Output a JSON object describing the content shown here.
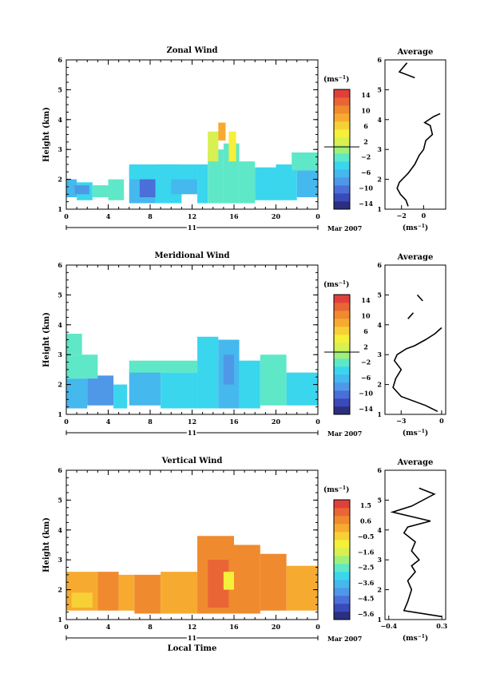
{
  "chart_data": [
    {
      "type": "heatmap",
      "title": "Zonal Wind",
      "ylabel": "Height (km)",
      "xlabel": "",
      "xlim": [
        0,
        24
      ],
      "ylim": [
        1,
        6
      ],
      "x_ticks": [
        "0",
        "4",
        "8",
        "12",
        "16",
        "20",
        "0"
      ],
      "y_ticks": [
        "1",
        "2",
        "3",
        "4",
        "5",
        "6"
      ],
      "date_label": "11",
      "month_label": "Mar 2007",
      "colorbar_unit": "(ms",
      "colorbar_unit_exp": "−1",
      "colorbar_unit_close": ")",
      "colorbar_range": [
        -16,
        16
      ],
      "colorbar_labels": [
        "14",
        "10",
        "6",
        "2",
        "−2",
        "−6",
        "−10",
        "−14"
      ],
      "cells": [
        {
          "x0": 0.0,
          "x1": 1.0,
          "y0": 1.4,
          "y1": 2.0,
          "v": -6
        },
        {
          "x0": 1.0,
          "x1": 2.5,
          "y0": 1.3,
          "y1": 1.9,
          "v": -4
        },
        {
          "x0": 2.5,
          "x1": 4.0,
          "y0": 1.4,
          "y1": 1.8,
          "v": -3
        },
        {
          "x0": 4.0,
          "x1": 5.5,
          "y0": 1.3,
          "y1": 2.0,
          "v": -3
        },
        {
          "x0": 0.8,
          "x1": 2.2,
          "y0": 1.5,
          "y1": 1.8,
          "v": -8
        },
        {
          "x0": 6.0,
          "x1": 8.5,
          "y0": 1.2,
          "y1": 2.4,
          "v": -7
        },
        {
          "x0": 7.0,
          "x1": 9.5,
          "y0": 1.4,
          "y1": 2.1,
          "v": -10
        },
        {
          "x0": 8.5,
          "x1": 11.0,
          "y0": 1.2,
          "y1": 2.5,
          "v": -5
        },
        {
          "x0": 10.0,
          "x1": 12.5,
          "y0": 1.5,
          "y1": 2.2,
          "v": -7
        },
        {
          "x0": 12.5,
          "x1": 13.5,
          "y0": 1.2,
          "y1": 2.5,
          "v": -4
        },
        {
          "x0": 13.5,
          "x1": 15.0,
          "y0": 1.2,
          "y1": 3.0,
          "v": -2
        },
        {
          "x0": 13.5,
          "x1": 14.5,
          "y0": 2.6,
          "y1": 3.6,
          "v": 2
        },
        {
          "x0": 15.0,
          "x1": 16.5,
          "y0": 1.2,
          "y1": 3.2,
          "v": -3
        },
        {
          "x0": 15.5,
          "x1": 16.2,
          "y0": 2.6,
          "y1": 3.6,
          "v": 4
        },
        {
          "x0": 16.5,
          "x1": 18.0,
          "y0": 1.2,
          "y1": 2.6,
          "v": -3
        },
        {
          "x0": 18.0,
          "x1": 20.0,
          "y0": 1.3,
          "y1": 2.4,
          "v": -5
        },
        {
          "x0": 20.0,
          "x1": 22.0,
          "y0": 1.3,
          "y1": 2.5,
          "v": -4
        },
        {
          "x0": 22.0,
          "x1": 24.0,
          "y0": 1.4,
          "y1": 2.3,
          "v": -6
        },
        {
          "x0": 21.5,
          "x1": 24.0,
          "y0": 2.3,
          "y1": 2.9,
          "v": -2
        },
        {
          "x0": 6.0,
          "x1": 12.5,
          "y0": 2.0,
          "y1": 2.5,
          "v": -4
        },
        {
          "x0": 14.5,
          "x1": 15.2,
          "y0": 3.3,
          "y1": 3.9,
          "v": 8
        }
      ],
      "profile": {
        "title": "Average",
        "xlim": [
          -3.5,
          2
        ],
        "x_ticks": [
          -2,
          0
        ],
        "x_tick_labels": [
          "−2",
          "0"
        ],
        "ylim": [
          1,
          6
        ],
        "y_ticks": [
          "1",
          "2",
          "3",
          "4",
          "5",
          "6"
        ],
        "xunit": "(ms",
        "xunit_exp": "−1",
        "xunit_close": ")",
        "segments": [
          [
            [
              -1.4,
              1.1
            ],
            [
              -1.6,
              1.3
            ],
            [
              -2.1,
              1.5
            ],
            [
              -2.4,
              1.7
            ],
            [
              -2.2,
              1.9
            ],
            [
              -1.4,
              2.2
            ],
            [
              -0.8,
              2.5
            ],
            [
              -0.4,
              2.8
            ],
            [
              0.0,
              3.0
            ],
            [
              0.2,
              3.3
            ],
            [
              0.8,
              3.5
            ],
            [
              0.6,
              3.8
            ],
            [
              0.1,
              3.9
            ],
            [
              0.9,
              4.1
            ],
            [
              1.5,
              4.2
            ]
          ],
          [
            [
              -1.5,
              5.9
            ],
            [
              -2.2,
              5.6
            ],
            [
              -0.8,
              5.4
            ]
          ]
        ]
      }
    },
    {
      "type": "heatmap",
      "title": "Meridional Wind",
      "ylabel": "Height (km)",
      "xlabel": "",
      "xlim": [
        0,
        24
      ],
      "ylim": [
        1,
        6
      ],
      "x_ticks": [
        "0",
        "4",
        "8",
        "12",
        "16",
        "20",
        "0"
      ],
      "y_ticks": [
        "1",
        "2",
        "3",
        "4",
        "5",
        "6"
      ],
      "date_label": "11",
      "month_label": "Mar 2007",
      "colorbar_unit": "(ms",
      "colorbar_unit_exp": "−1",
      "colorbar_unit_close": ")",
      "colorbar_range": [
        -16,
        16
      ],
      "colorbar_labels": [
        "14",
        "10",
        "6",
        "2",
        "−2",
        "−6",
        "−10",
        "−14"
      ],
      "cells": [
        {
          "x0": 0.0,
          "x1": 2.0,
          "y0": 1.2,
          "y1": 2.2,
          "v": -7
        },
        {
          "x0": 2.0,
          "x1": 4.5,
          "y0": 1.3,
          "y1": 2.3,
          "v": -8
        },
        {
          "x0": 0.0,
          "x1": 3.0,
          "y0": 2.2,
          "y1": 3.0,
          "v": -3
        },
        {
          "x0": 4.5,
          "x1": 5.8,
          "y0": 1.2,
          "y1": 2.0,
          "v": -5
        },
        {
          "x0": 6.0,
          "x1": 9.0,
          "y0": 1.3,
          "y1": 2.5,
          "v": -7
        },
        {
          "x0": 9.0,
          "x1": 12.5,
          "y0": 1.2,
          "y1": 2.4,
          "v": -5
        },
        {
          "x0": 6.0,
          "x1": 12.5,
          "y0": 2.4,
          "y1": 2.8,
          "v": -3
        },
        {
          "x0": 12.5,
          "x1": 14.5,
          "y0": 1.2,
          "y1": 3.6,
          "v": -5
        },
        {
          "x0": 14.5,
          "x1": 16.5,
          "y0": 1.2,
          "y1": 3.5,
          "v": -6
        },
        {
          "x0": 16.5,
          "x1": 18.5,
          "y0": 1.2,
          "y1": 2.8,
          "v": -4
        },
        {
          "x0": 18.5,
          "x1": 21.0,
          "y0": 1.3,
          "y1": 3.0,
          "v": -3
        },
        {
          "x0": 21.0,
          "x1": 24.0,
          "y0": 1.3,
          "y1": 2.4,
          "v": -5
        },
        {
          "x0": 15.0,
          "x1": 16.0,
          "y0": 2.0,
          "y1": 3.0,
          "v": -9
        },
        {
          "x0": 0.0,
          "x1": 1.5,
          "y0": 3.0,
          "y1": 3.7,
          "v": -3
        }
      ],
      "profile": {
        "title": "Average",
        "xlim": [
          -4.2,
          0.3
        ],
        "x_ticks": [
          -3,
          0
        ],
        "x_tick_labels": [
          "−3",
          "0"
        ],
        "ylim": [
          1,
          6
        ],
        "y_ticks": [
          "1",
          "2",
          "3",
          "4",
          "5",
          "6"
        ],
        "xunit": "(ms",
        "xunit_exp": "−1",
        "xunit_close": ")",
        "segments": [
          [
            [
              -0.3,
              1.1
            ],
            [
              -1.2,
              1.3
            ],
            [
              -3.0,
              1.6
            ],
            [
              -3.6,
              1.9
            ],
            [
              -3.4,
              2.2
            ],
            [
              -3.0,
              2.5
            ],
            [
              -3.5,
              2.8
            ],
            [
              -3.3,
              3.0
            ],
            [
              -2.6,
              3.2
            ],
            [
              -2.0,
              3.3
            ],
            [
              -1.2,
              3.5
            ],
            [
              -0.5,
              3.7
            ],
            [
              0.0,
              3.9
            ]
          ],
          [
            [
              -2.5,
              4.2
            ],
            [
              -2.1,
              4.4
            ]
          ],
          [
            [
              -1.8,
              5.0
            ],
            [
              -1.4,
              4.8
            ]
          ]
        ]
      }
    },
    {
      "type": "heatmap",
      "title": "Vertical Wind",
      "ylabel": "Height (km)",
      "xlabel": "Local Time",
      "xlim": [
        0,
        24
      ],
      "ylim": [
        1,
        6
      ],
      "x_ticks": [
        "0",
        "4",
        "8",
        "12",
        "16",
        "20",
        "0"
      ],
      "y_ticks": [
        "1",
        "2",
        "3",
        "4",
        "5",
        "6"
      ],
      "date_label": "11",
      "month_label": "Mar 2007",
      "colorbar_unit": "(ms",
      "colorbar_unit_exp": "−1",
      "colorbar_unit_close": ")",
      "colorbar_range": [
        -6,
        2
      ],
      "colorbar_labels": [
        "1.5",
        "0.6",
        "−0.5",
        "−1.6",
        "−2.5",
        "−3.6",
        "−4.5",
        "−5.6"
      ],
      "cells": [
        {
          "x0": 0.0,
          "x1": 3.0,
          "y0": 1.3,
          "y1": 2.6,
          "v": 0.2
        },
        {
          "x0": 3.0,
          "x1": 5.0,
          "y0": 1.3,
          "y1": 2.6,
          "v": 0.4
        },
        {
          "x0": 5.0,
          "x1": 6.5,
          "y0": 1.3,
          "y1": 2.5,
          "v": 0.0
        },
        {
          "x0": 6.5,
          "x1": 9.0,
          "y0": 1.2,
          "y1": 2.5,
          "v": 0.5
        },
        {
          "x0": 9.0,
          "x1": 12.5,
          "y0": 1.2,
          "y1": 2.6,
          "v": 0.3
        },
        {
          "x0": 12.5,
          "x1": 16.0,
          "y0": 1.2,
          "y1": 3.8,
          "v": 0.8
        },
        {
          "x0": 13.5,
          "x1": 15.5,
          "y0": 1.4,
          "y1": 3.0,
          "v": 1.1
        },
        {
          "x0": 16.0,
          "x1": 18.5,
          "y0": 1.2,
          "y1": 3.5,
          "v": 0.7
        },
        {
          "x0": 18.5,
          "x1": 21.0,
          "y0": 1.3,
          "y1": 3.2,
          "v": 0.5
        },
        {
          "x0": 21.0,
          "x1": 24.0,
          "y0": 1.3,
          "y1": 2.8,
          "v": 0.3
        },
        {
          "x0": 0.5,
          "x1": 2.5,
          "y0": 1.4,
          "y1": 1.9,
          "v": -0.4
        },
        {
          "x0": 15.0,
          "x1": 16.0,
          "y0": 2.0,
          "y1": 2.6,
          "v": -1.0
        }
      ],
      "profile": {
        "title": "Average",
        "xlim": [
          -0.45,
          0.35
        ],
        "x_ticks": [
          -0.4,
          0.3
        ],
        "x_tick_labels": [
          "−0.4",
          "0.3"
        ],
        "ylim": [
          1,
          6
        ],
        "y_ticks": [
          "1",
          "2",
          "3",
          "4",
          "5",
          "6"
        ],
        "xunit": "(ms",
        "xunit_exp": "−1",
        "xunit_close": ")",
        "segments": [
          [
            [
              0.3,
              1.1
            ],
            [
              -0.2,
              1.3
            ],
            [
              -0.15,
              1.6
            ],
            [
              -0.1,
              2.0
            ],
            [
              -0.15,
              2.3
            ],
            [
              -0.05,
              2.6
            ],
            [
              -0.1,
              2.8
            ],
            [
              0.0,
              3.0
            ],
            [
              -0.1,
              3.3
            ],
            [
              -0.05,
              3.6
            ],
            [
              -0.2,
              3.9
            ],
            [
              -0.15,
              4.1
            ],
            [
              0.15,
              4.3
            ],
            [
              -0.35,
              4.6
            ],
            [
              -0.1,
              4.8
            ],
            [
              0.2,
              5.2
            ],
            [
              0.0,
              5.4
            ]
          ]
        ]
      }
    }
  ]
}
